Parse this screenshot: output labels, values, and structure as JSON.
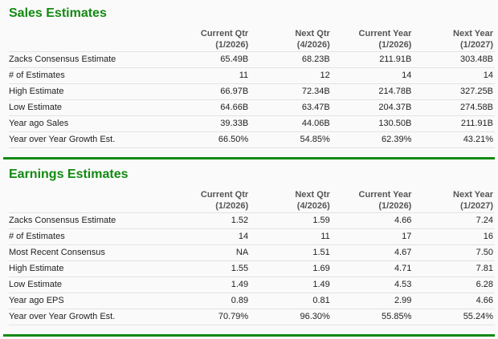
{
  "colors": {
    "title": "#128a12",
    "rule": "#138a13"
  },
  "columns": [
    {
      "line1": "Current Qtr",
      "line2": "(1/2026)"
    },
    {
      "line1": "Next Qtr",
      "line2": "(4/2026)"
    },
    {
      "line1": "Current Year",
      "line2": "(1/2026)"
    },
    {
      "line1": "Next Year",
      "line2": "(1/2027)"
    }
  ],
  "sales": {
    "title": "Sales Estimates",
    "rows": [
      {
        "label": "Zacks Consensus Estimate",
        "values": [
          "65.49B",
          "68.23B",
          "211.91B",
          "303.48B"
        ]
      },
      {
        "label": "# of Estimates",
        "values": [
          "11",
          "12",
          "14",
          "14"
        ]
      },
      {
        "label": "High Estimate",
        "values": [
          "66.97B",
          "72.34B",
          "214.78B",
          "327.25B"
        ]
      },
      {
        "label": "Low Estimate",
        "values": [
          "64.66B",
          "63.47B",
          "204.37B",
          "274.58B"
        ]
      },
      {
        "label": "Year ago Sales",
        "values": [
          "39.33B",
          "44.06B",
          "130.50B",
          "211.91B"
        ]
      },
      {
        "label": "Year over Year Growth Est.",
        "values": [
          "66.50%",
          "54.85%",
          "62.39%",
          "43.21%"
        ]
      }
    ]
  },
  "earnings": {
    "title": "Earnings Estimates",
    "rows": [
      {
        "label": "Zacks Consensus Estimate",
        "values": [
          "1.52",
          "1.59",
          "4.66",
          "7.24"
        ]
      },
      {
        "label": "# of Estimates",
        "values": [
          "14",
          "11",
          "17",
          "16"
        ]
      },
      {
        "label": "Most Recent Consensus",
        "values": [
          "NA",
          "1.51",
          "4.67",
          "7.50"
        ]
      },
      {
        "label": "High Estimate",
        "values": [
          "1.55",
          "1.69",
          "4.71",
          "7.81"
        ]
      },
      {
        "label": "Low Estimate",
        "values": [
          "1.49",
          "1.49",
          "4.53",
          "6.28"
        ]
      },
      {
        "label": "Year ago EPS",
        "values": [
          "0.89",
          "0.81",
          "2.99",
          "4.66"
        ]
      },
      {
        "label": "Year over Year Growth Est.",
        "values": [
          "70.79%",
          "96.30%",
          "55.85%",
          "55.24%"
        ]
      }
    ]
  }
}
